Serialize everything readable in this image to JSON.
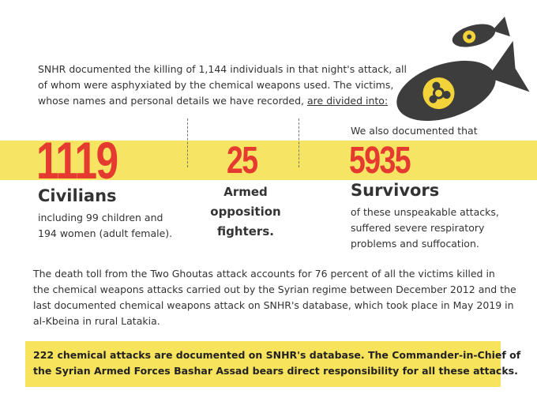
{
  "intro": {
    "lines": [
      "SNHR documented the killing of 1,144 individuals in that night's attack, all",
      "of whom were asphyxiated by the chemical weapons used. The victims,",
      "whose names and personal details we have recorded,"
    ],
    "underlined": "are divided into:"
  },
  "civilians": {
    "number": "1119",
    "label": "Civilians",
    "lines": [
      "including 99 children and",
      "194 women (adult female)."
    ]
  },
  "fighters": {
    "number": "25",
    "lines": [
      "Armed",
      "opposition",
      "fighters."
    ]
  },
  "survivors": {
    "lead": "We also documented that",
    "number": "5935",
    "label": "Survivors",
    "lines": [
      "of these unspeakable attacks,",
      "suffered severe respiratory",
      "problems and suffocation."
    ]
  },
  "toll": {
    "lines": [
      "The death toll from the Two Ghoutas attack accounts for 76 percent of all the victims killed in",
      "the chemical weapons attacks carried out by the Syrian regime between December 2012 and the",
      "last documented chemical weapons attack on SNHR's database, which took place in May 2019 in",
      "al-Kbeina in rural Latakia."
    ]
  },
  "callout": {
    "lines": [
      "222 chemical attacks are documented on SNHR's database. The Commander-in-Chief of",
      "the Syrian Armed Forces Bashar Assad bears direct responsibility for all these attacks."
    ]
  }
}
